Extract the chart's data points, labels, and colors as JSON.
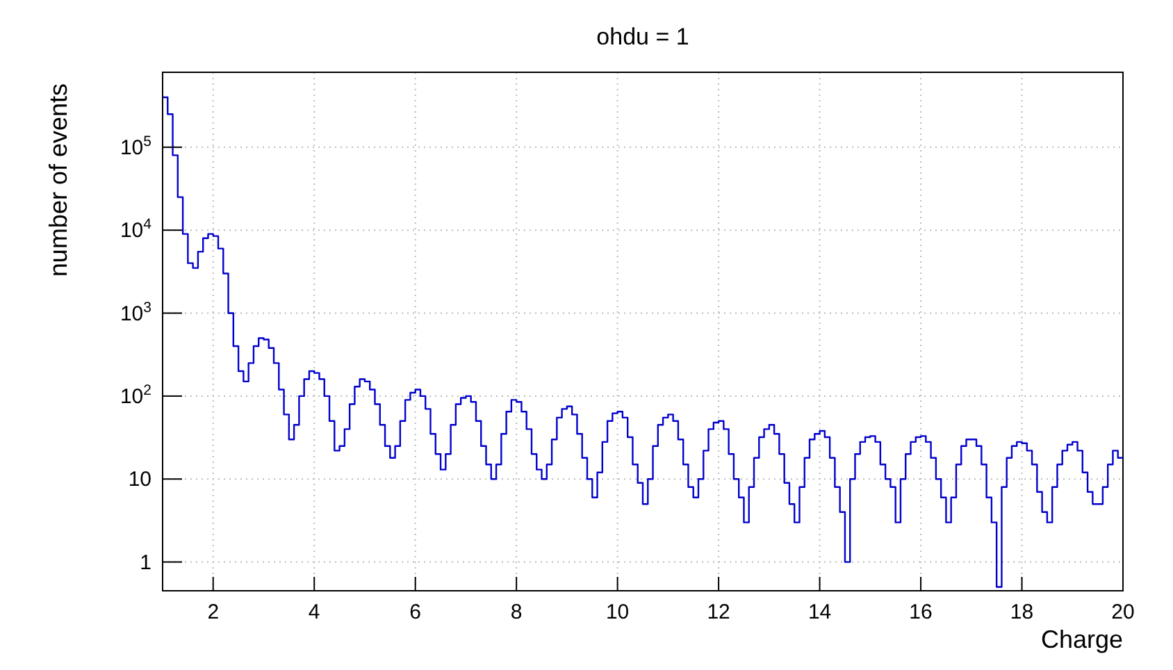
{
  "chart_data": {
    "type": "histogram",
    "title": "ohdu = 1",
    "xlabel": "Charge",
    "ylabel": "number of events",
    "color": "#0000cc",
    "log": "y",
    "grid": true,
    "xlim": [
      1,
      20
    ],
    "xticks": [
      2,
      4,
      6,
      8,
      10,
      12,
      14,
      16,
      18,
      20
    ],
    "ylim": [
      0.45,
      800000
    ],
    "yticks": [
      1,
      10,
      {
        "value": 100,
        "label": "10$^{2}$"
      },
      {
        "value": 1000,
        "label": "10$^{3}$"
      },
      {
        "value": 10000,
        "label": "10$^{4}$"
      },
      {
        "value": 100000,
        "label": "10$^{5}$"
      }
    ],
    "bins": [
      1,
      1.1,
      1.2,
      1.3,
      1.4,
      1.5,
      1.6,
      1.7,
      1.8,
      1.9,
      2,
      2.1,
      2.2,
      2.3,
      2.4,
      2.5,
      2.6,
      2.7,
      2.8,
      2.9,
      3,
      3.1,
      3.2,
      3.3,
      3.4,
      3.5,
      3.6,
      3.7,
      3.8,
      3.9,
      4,
      4.1,
      4.2,
      4.3,
      4.4,
      4.5,
      4.6,
      4.7,
      4.8,
      4.9,
      5,
      5.1,
      5.2,
      5.3,
      5.4,
      5.5,
      5.6,
      5.7,
      5.8,
      5.9,
      6,
      6.1,
      6.2,
      6.3,
      6.4,
      6.5,
      6.6,
      6.7,
      6.8,
      6.9,
      7,
      7.1,
      7.2,
      7.3,
      7.4,
      7.5,
      7.6,
      7.7,
      7.8,
      7.9,
      8,
      8.1,
      8.2,
      8.3,
      8.4,
      8.5,
      8.6,
      8.7,
      8.8,
      8.9,
      9,
      9.1,
      9.2,
      9.3,
      9.4,
      9.5,
      9.6,
      9.7,
      9.8,
      9.9,
      10,
      10.1,
      10.2,
      10.3,
      10.4,
      10.5,
      10.6,
      10.7,
      10.8,
      10.9,
      11,
      11.1,
      11.2,
      11.3,
      11.4,
      11.5,
      11.6,
      11.7,
      11.8,
      11.9,
      12,
      12.1,
      12.2,
      12.3,
      12.4,
      12.5,
      12.6,
      12.7,
      12.8,
      12.9,
      13,
      13.1,
      13.2,
      13.3,
      13.4,
      13.5,
      13.6,
      13.7,
      13.8,
      13.9,
      14,
      14.1,
      14.2,
      14.3,
      14.4,
      14.5,
      14.6,
      14.7,
      14.8,
      14.9,
      15,
      15.1,
      15.2,
      15.3,
      15.4,
      15.5,
      15.6,
      15.7,
      15.8,
      15.9,
      16,
      16.1,
      16.2,
      16.3,
      16.4,
      16.5,
      16.6,
      16.7,
      16.8,
      16.9,
      17,
      17.1,
      17.2,
      17.3,
      17.4,
      17.5,
      17.6,
      17.7,
      17.8,
      17.9,
      18,
      18.1,
      18.2,
      18.3,
      18.4,
      18.5,
      18.6,
      18.7,
      18.8,
      18.9,
      19,
      19.1,
      19.2,
      19.3,
      19.4,
      19.5,
      19.6,
      19.7,
      19.8,
      19.9,
      20
    ],
    "values": [
      400000,
      250000,
      80000,
      25000,
      9000,
      4000,
      3500,
      5500,
      8000,
      9000,
      8500,
      6000,
      3000,
      1000,
      400,
      200,
      150,
      250,
      400,
      500,
      480,
      380,
      250,
      120,
      60,
      30,
      45,
      100,
      160,
      200,
      190,
      160,
      100,
      50,
      22,
      25,
      40,
      80,
      130,
      160,
      150,
      120,
      80,
      45,
      25,
      18,
      25,
      50,
      90,
      110,
      120,
      100,
      70,
      35,
      20,
      13,
      20,
      45,
      80,
      95,
      100,
      85,
      50,
      25,
      15,
      10,
      15,
      35,
      65,
      90,
      85,
      65,
      40,
      20,
      13,
      10,
      15,
      30,
      55,
      70,
      75,
      60,
      35,
      18,
      10,
      6,
      12,
      28,
      50,
      62,
      65,
      55,
      32,
      15,
      9,
      5,
      10,
      25,
      45,
      55,
      60,
      50,
      30,
      15,
      8,
      6,
      10,
      22,
      40,
      48,
      50,
      40,
      20,
      10,
      6,
      3,
      8,
      18,
      32,
      40,
      45,
      35,
      20,
      9,
      5,
      3,
      8,
      18,
      30,
      35,
      38,
      32,
      18,
      8,
      4,
      1,
      10,
      20,
      28,
      32,
      33,
      28,
      15,
      10,
      8,
      3,
      10,
      20,
      28,
      32,
      33,
      28,
      18,
      10,
      6,
      3,
      6,
      15,
      25,
      30,
      30,
      25,
      15,
      6,
      3,
      0.5,
      8,
      18,
      25,
      28,
      27,
      22,
      15,
      7,
      4,
      3,
      8,
      15,
      22,
      26,
      28,
      22,
      12,
      7,
      5,
      5,
      8,
      15,
      22,
      18
    ]
  }
}
